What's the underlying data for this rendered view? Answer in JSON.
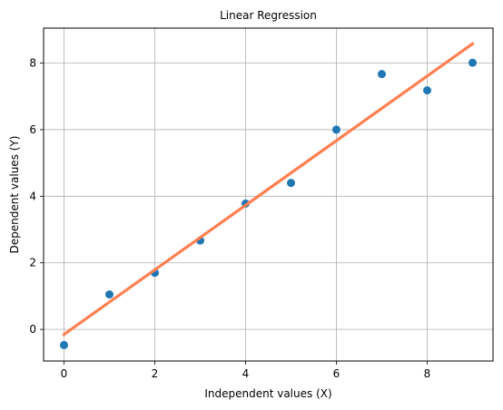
{
  "chart_data": {
    "type": "scatter",
    "title": "Linear Regression",
    "xlabel": "Independent values (X)",
    "ylabel": "Dependent values (Y)",
    "xlim": [
      -0.45,
      9.45
    ],
    "ylim": [
      -0.95,
      9.05
    ],
    "xticks": [
      0,
      2,
      4,
      6,
      8
    ],
    "yticks": [
      0,
      2,
      4,
      6,
      8
    ],
    "grid": true,
    "series": [
      {
        "kind": "points",
        "color": "#1f77b4",
        "x": [
          0,
          1,
          2,
          3,
          4,
          5,
          6,
          7,
          8,
          9
        ],
        "y": [
          -0.47,
          1.05,
          1.7,
          2.67,
          3.78,
          4.4,
          6.0,
          7.67,
          7.18,
          8.01
        ]
      },
      {
        "kind": "line",
        "color": "#ff7f50",
        "x": [
          0,
          9
        ],
        "y": [
          -0.15,
          8.58
        ]
      }
    ]
  }
}
